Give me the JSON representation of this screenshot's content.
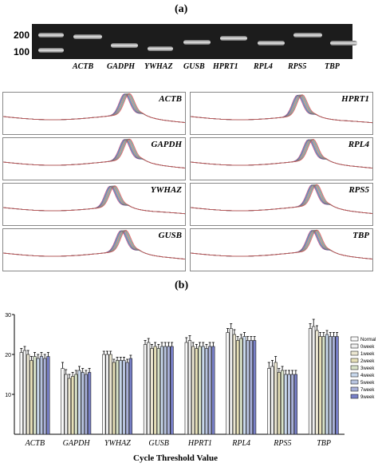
{
  "figure": {
    "panel_a_label": "(a)",
    "panel_b_label": "(b)"
  },
  "gel": {
    "ladder_labels": [
      "200",
      "100"
    ],
    "lane_labels": [
      "ACTB",
      "GADPH",
      "YWHAZ",
      "GUSB",
      "HPRT1",
      "RPL4",
      "RPS5",
      "TBP"
    ]
  },
  "melt_curves": [
    {
      "gene": "ACTB",
      "peak_pos": 0.68
    },
    {
      "gene": "HPRT1",
      "peak_pos": 0.6
    },
    {
      "gene": "GAPDH",
      "peak_pos": 0.68
    },
    {
      "gene": "RPL4",
      "peak_pos": 0.66
    },
    {
      "gene": "YWHAZ",
      "peak_pos": 0.6
    },
    {
      "gene": "RPS5",
      "peak_pos": 0.68
    },
    {
      "gene": "GUSB",
      "peak_pos": 0.66
    },
    {
      "gene": "TBP",
      "peak_pos": 0.68
    }
  ],
  "chart_data": {
    "type": "bar",
    "xlabel": "Cycle Threshold Value",
    "ylabel": "",
    "ylim": [
      0,
      30
    ],
    "yticks": [
      10,
      20,
      30
    ],
    "categories": [
      "ACTB",
      "GAPDH",
      "YWHAZ",
      "GUSB",
      "HPRT1",
      "RPL4",
      "RPS5",
      "TBP"
    ],
    "series": [
      {
        "name": "Normal",
        "values": [
          20.5,
          16.5,
          20.0,
          22.5,
          23.0,
          25.5,
          16.5,
          26.5
        ],
        "errors": [
          1.0,
          1.5,
          0.8,
          1.0,
          1.2,
          1.0,
          1.5,
          1.2
        ]
      },
      {
        "name": "0week",
        "values": [
          21.0,
          15.0,
          20.0,
          23.0,
          23.5,
          26.5,
          17.0,
          27.0
        ],
        "errors": [
          1.0,
          1.2,
          0.8,
          1.0,
          1.2,
          1.2,
          1.5,
          1.8
        ]
      },
      {
        "name": "1week",
        "values": [
          20.0,
          14.0,
          20.0,
          21.5,
          22.0,
          25.0,
          18.0,
          26.0
        ],
        "errors": [
          1.0,
          1.0,
          0.8,
          1.0,
          1.0,
          1.2,
          1.5,
          1.2
        ]
      },
      {
        "name": "2week",
        "values": [
          18.5,
          14.5,
          18.0,
          22.0,
          21.5,
          23.5,
          15.5,
          24.5
        ],
        "errors": [
          1.0,
          1.0,
          0.8,
          1.0,
          1.0,
          1.0,
          1.0,
          1.0
        ]
      },
      {
        "name": "3week",
        "values": [
          19.5,
          15.0,
          18.5,
          21.5,
          22.0,
          24.0,
          16.0,
          24.5
        ],
        "errors": [
          1.0,
          1.0,
          0.8,
          1.0,
          1.0,
          1.0,
          1.0,
          1.0
        ]
      },
      {
        "name": "4week",
        "values": [
          19.0,
          16.0,
          18.5,
          22.0,
          22.0,
          24.5,
          15.0,
          25.0
        ],
        "errors": [
          1.0,
          1.0,
          0.8,
          1.0,
          1.0,
          1.0,
          1.0,
          1.0
        ]
      },
      {
        "name": "5week",
        "values": [
          19.5,
          15.5,
          18.5,
          22.0,
          21.5,
          23.5,
          15.0,
          24.5
        ],
        "errors": [
          1.0,
          1.0,
          0.8,
          1.0,
          1.0,
          1.0,
          1.0,
          1.0
        ]
      },
      {
        "name": "7week",
        "values": [
          19.0,
          15.0,
          18.0,
          22.0,
          22.0,
          23.5,
          15.0,
          24.5
        ],
        "errors": [
          1.0,
          1.0,
          0.8,
          1.0,
          1.0,
          1.0,
          1.0,
          1.0
        ]
      },
      {
        "name": "9week",
        "values": [
          19.5,
          15.5,
          19.0,
          22.0,
          22.0,
          23.5,
          15.0,
          24.5
        ],
        "errors": [
          1.0,
          1.0,
          0.8,
          1.0,
          1.0,
          1.0,
          1.0,
          1.0
        ]
      }
    ],
    "legend_position": "right",
    "colors": {
      "Normal": "#f8f8f8",
      "0week": "#eeeeee",
      "1week": "#ece7d2",
      "2week": "#e6e0b8",
      "3week": "#d8e2c8",
      "4week": "#c8d8ec",
      "5week": "#b8c4e0",
      "7week": "#a8b0d8",
      "9week": "#7880c8"
    }
  }
}
